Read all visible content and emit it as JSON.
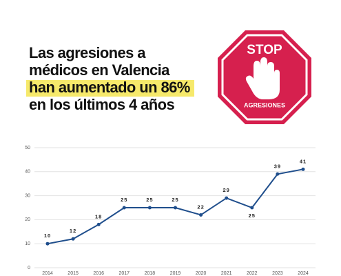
{
  "title_lines": [
    "Las agresiones a",
    "médicos en Valencia",
    "han aumentado un 86%",
    "en los últimos 4 años"
  ],
  "highlight_line": 2,
  "sign": {
    "top": "STOP",
    "bottom": "AGRESIONES"
  },
  "chart_data": {
    "type": "line",
    "categories": [
      "2014",
      "2015",
      "2016",
      "2017",
      "2018",
      "2019",
      "2020",
      "2021",
      "2022",
      "2023",
      "2024"
    ],
    "values": [
      10,
      12,
      18,
      25,
      25,
      25,
      22,
      29,
      25,
      39,
      41
    ],
    "color": "#1f4e8c",
    "ylim": [
      0,
      50
    ],
    "yticks": [
      0,
      10,
      20,
      30,
      40,
      50
    ],
    "grid": true
  }
}
